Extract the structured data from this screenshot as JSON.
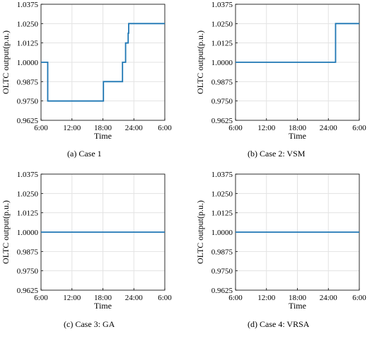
{
  "chart_data": [
    {
      "type": "line",
      "caption": "(a) Case 1",
      "xlabel": "Time",
      "ylabel": "OLTC output(p.u.)",
      "x_ticks": [
        "6:00",
        "12:00",
        "18:00",
        "24:00",
        "6:00"
      ],
      "y_ticks": [
        "0.9625",
        "0.9750",
        "0.9875",
        "1.0000",
        "1.0125",
        "1.0250",
        "1.0375"
      ],
      "xlim": [
        6,
        30
      ],
      "ylim": [
        0.9625,
        1.0375
      ],
      "grid": true,
      "color": "#1f77b4",
      "series": [
        {
          "x": [
            6,
            7.3,
            7.3,
            18.1,
            18.1,
            21.8,
            21.8,
            22.4,
            22.4,
            22.9,
            22.9,
            23.0,
            23.0,
            30
          ],
          "y": [
            1.0,
            1.0,
            0.975,
            0.975,
            0.9875,
            0.9875,
            1.0,
            1.0,
            1.0125,
            1.0125,
            1.0188,
            1.0188,
            1.025,
            1.025
          ]
        }
      ]
    },
    {
      "type": "line",
      "caption": "(b) Case 2: VSM",
      "xlabel": "Time",
      "ylabel": "OLTC output(p.u.)",
      "x_ticks": [
        "6:00",
        "12:00",
        "18:00",
        "24:00",
        "6:00"
      ],
      "y_ticks": [
        "0.9625",
        "0.9750",
        "0.9875",
        "1.0000",
        "1.0125",
        "1.0250",
        "1.0375"
      ],
      "xlim": [
        6,
        30
      ],
      "ylim": [
        0.9625,
        1.0375
      ],
      "grid": true,
      "color": "#1f77b4",
      "series": [
        {
          "x": [
            6,
            25.4,
            25.4,
            30
          ],
          "y": [
            1.0,
            1.0,
            1.025,
            1.025
          ]
        }
      ]
    },
    {
      "type": "line",
      "caption": "(c) Case 3: GA",
      "xlabel": "Time",
      "ylabel": "OLTC output(p.u.)",
      "x_ticks": [
        "6:00",
        "12:00",
        "18:00",
        "24:00",
        "6:00"
      ],
      "y_ticks": [
        "0.9625",
        "0.9750",
        "0.9875",
        "1.0000",
        "1.0125",
        "1.0250",
        "1.0375"
      ],
      "xlim": [
        6,
        30
      ],
      "ylim": [
        0.9625,
        1.0375
      ],
      "grid": true,
      "color": "#1f77b4",
      "series": [
        {
          "x": [
            6,
            30
          ],
          "y": [
            1.0,
            1.0
          ]
        }
      ]
    },
    {
      "type": "line",
      "caption": "(d) Case 4: VRSA",
      "xlabel": "Time",
      "ylabel": "OLTC output(p.u.)",
      "x_ticks": [
        "6:00",
        "12:00",
        "18:00",
        "24:00",
        "6:00"
      ],
      "y_ticks": [
        "0.9625",
        "0.9750",
        "0.9875",
        "1.0000",
        "1.0125",
        "1.0250",
        "1.0375"
      ],
      "xlim": [
        6,
        30
      ],
      "ylim": [
        0.9625,
        1.0375
      ],
      "grid": true,
      "color": "#1f77b4",
      "series": [
        {
          "x": [
            6,
            30
          ],
          "y": [
            1.0,
            1.0
          ]
        }
      ]
    }
  ]
}
